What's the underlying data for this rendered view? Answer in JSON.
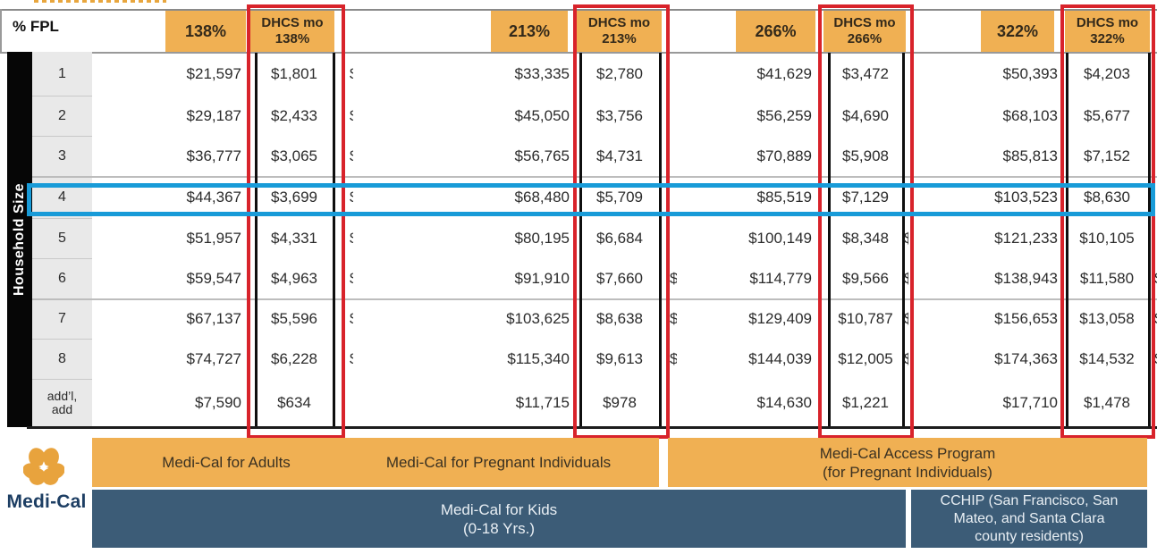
{
  "chart_data": {
    "type": "table",
    "corner_label": "% FPL",
    "side_label": "Household Size",
    "row_labels": [
      "1",
      "2",
      "3",
      "4",
      "5",
      "6",
      "7",
      "8",
      "add’l,\nadd"
    ],
    "highlighted_row": "4",
    "columns": [
      {
        "header": "138%",
        "dhcs_header": "DHCS mo\n138%",
        "annual": [
          "$21,597",
          "$29,187",
          "$36,777",
          "$44,367",
          "$51,957",
          "$59,547",
          "$67,137",
          "$74,727",
          "$7,590"
        ],
        "monthly": [
          "$1,801",
          "$2,433",
          "$3,065",
          "$3,699",
          "$4,331",
          "$4,963",
          "$5,596",
          "$6,228",
          "$634"
        ]
      },
      {
        "header": "213%",
        "dhcs_header": "DHCS mo\n213%",
        "annual": [
          "$33,335",
          "$45,050",
          "$56,765",
          "$68,480",
          "$80,195",
          "$91,910",
          "$103,625",
          "$115,340",
          "$11,715"
        ],
        "monthly": [
          "$2,780",
          "$3,756",
          "$4,731",
          "$5,709",
          "$6,684",
          "$7,660",
          "$8,638",
          "$9,613",
          "$978"
        ]
      },
      {
        "header": "266%",
        "dhcs_header": "DHCS mo\n266%",
        "annual": [
          "$41,629",
          "$56,259",
          "$70,889",
          "$85,519",
          "$100,149",
          "$114,779",
          "$129,409",
          "$144,039",
          "$14,630"
        ],
        "monthly": [
          "$3,472",
          "$4,690",
          "$5,908",
          "$7,129",
          "$8,348",
          "$9,566",
          "$10,787",
          "$12,005",
          "$1,221"
        ]
      },
      {
        "header": "322%",
        "dhcs_header": "DHCS mo\n322%",
        "annual": [
          "$50,393",
          "$68,103",
          "$85,813",
          "$103,523",
          "$121,233",
          "$138,943",
          "$156,653",
          "$174,363",
          "$17,710"
        ],
        "monthly": [
          "$4,203",
          "$5,677",
          "$7,152",
          "$8,630",
          "$10,105",
          "$11,580",
          "$13,058",
          "$14,532",
          "$1,478"
        ]
      }
    ]
  },
  "programs": {
    "adults": "Medi-Cal for Adults",
    "pregnant": "Medi-Cal for Pregnant Individuals",
    "access": "Medi-Cal Access Program\n(for Pregnant Individuals)",
    "kids": "Medi-Cal for Kids\n(0-18 Yrs.)",
    "cchip": "CCHIP (San Francisco, San\nMateo, and Santa Clara\ncounty residents)"
  },
  "logo": {
    "text": "Medi-Cal"
  },
  "artifact_glyph": "$",
  "colors": {
    "header_orange": "#f0b053",
    "dhcs_box_red": "#d8232b",
    "highlight_blue": "#189bd8",
    "program_navy": "#3c5c77",
    "logo_navy": "#1d3e63"
  }
}
